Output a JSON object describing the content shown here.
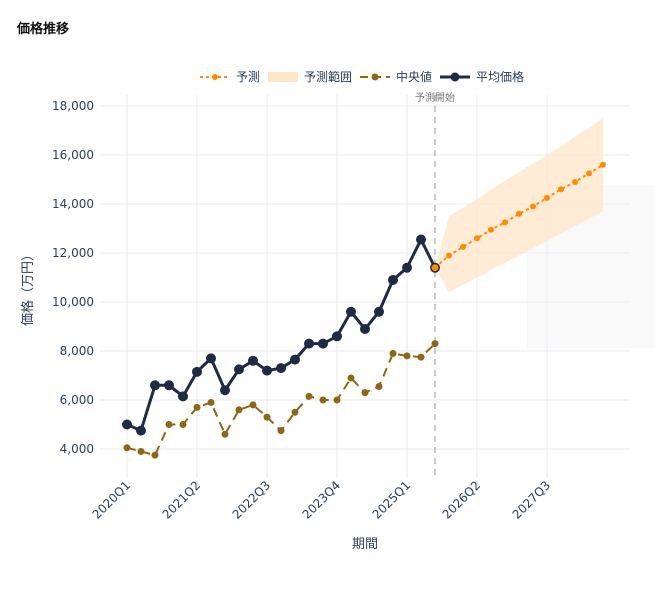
{
  "title": "価格推移",
  "chart_data": {
    "type": "line",
    "xlabel": "期間",
    "ylabel": "価格（万円）",
    "x": [
      "2020Q1",
      "2020Q2",
      "2020Q3",
      "2020Q4",
      "2021Q1",
      "2021Q2",
      "2021Q3",
      "2021Q4",
      "2022Q1",
      "2022Q2",
      "2022Q3",
      "2022Q4",
      "2023Q1",
      "2023Q2",
      "2023Q3",
      "2023Q4",
      "2024Q1",
      "2024Q2",
      "2024Q3",
      "2024Q4",
      "2025Q1",
      "2025Q2",
      "2025Q3"
    ],
    "x_ticks": [
      "2020Q1",
      "2021Q2",
      "2022Q3",
      "2023Q4",
      "2025Q1",
      "2026Q2",
      "2027Q3"
    ],
    "y_ticks": [
      4000,
      6000,
      8000,
      10000,
      12000,
      14000,
      16000,
      18000
    ],
    "y_tick_labels": [
      "4,000",
      "6,000",
      "8,000",
      "10,000",
      "12,000",
      "14,000",
      "16,000",
      "18,000"
    ],
    "ylim": [
      3000,
      18400
    ],
    "grid": true,
    "legend_placement": "top-center",
    "series": [
      {
        "name": "平均価格",
        "color": "#1f2a44",
        "style": "solid-markers",
        "values": [
          5000,
          4750,
          6600,
          6600,
          6150,
          7150,
          7700,
          6400,
          7250,
          7600,
          7200,
          7300,
          7650,
          8300,
          8300,
          8600,
          9600,
          8900,
          9600,
          10900,
          11400,
          12550,
          11400
        ]
      },
      {
        "name": "中央値",
        "color": "#8b6914",
        "style": "dashed-markers",
        "values": [
          4050,
          3900,
          3750,
          5000,
          5000,
          5700,
          5900,
          4600,
          5600,
          5800,
          5300,
          4750,
          5500,
          6150,
          6000,
          6000,
          6900,
          6300,
          6550,
          7900,
          7800,
          7750,
          8300
        ]
      }
    ],
    "forecast": {
      "name": "予測",
      "color": "#ff8c00",
      "x": [
        "2025Q3",
        "2025Q4",
        "2026Q1",
        "2026Q2",
        "2026Q3",
        "2026Q4",
        "2027Q1",
        "2027Q2",
        "2027Q3",
        "2027Q4",
        "2028Q1",
        "2028Q2",
        "2028Q3"
      ],
      "values": [
        11400,
        11900,
        12250,
        12600,
        12950,
        13250,
        13600,
        13900,
        14250,
        14600,
        14900,
        15250,
        15600
      ],
      "band_name": "予測範囲",
      "band_color": "#fde5c8",
      "upper": [
        11400,
        13500,
        13850,
        14200,
        14600,
        14950,
        15300,
        15650,
        16000,
        16350,
        16750,
        17100,
        17500
      ],
      "lower": [
        11400,
        10400,
        10700,
        11000,
        11300,
        11600,
        11900,
        12200,
        12500,
        12800,
        13100,
        13400,
        13700
      ]
    },
    "annotation": {
      "text": "予測開始",
      "x": "2025Q3"
    }
  }
}
